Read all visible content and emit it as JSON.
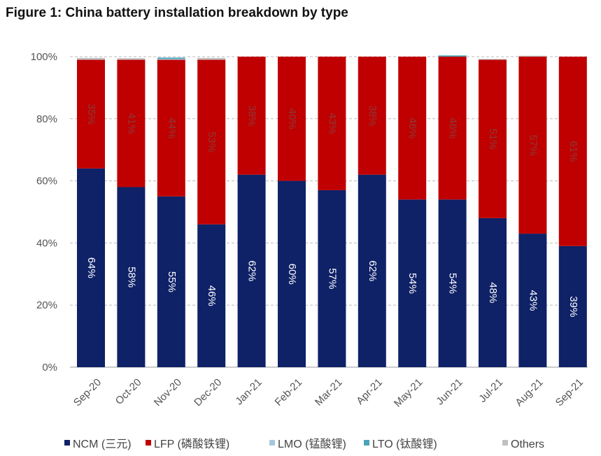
{
  "chart_data": {
    "type": "stacked-bar",
    "title": "Figure 1: China battery installation breakdown by type",
    "categories": [
      "Sep-20",
      "Oct-20",
      "Nov-20",
      "Dec-20",
      "Jan-21",
      "Feb-21",
      "Mar-21",
      "Apr-21",
      "May-21",
      "Jun-21",
      "Jul-21",
      "Aug-21",
      "Sep-21"
    ],
    "ylim": [
      0,
      100
    ],
    "yticks": [
      "0%",
      "20%",
      "40%",
      "60%",
      "80%",
      "100%"
    ],
    "grid": "horizontal dashed",
    "legend_position": "bottom",
    "series": [
      {
        "name": "NCM (三元)",
        "color": "#0f2167",
        "values": [
          64,
          58,
          55,
          46,
          62,
          60,
          57,
          62,
          54,
          54,
          48,
          43,
          39
        ],
        "labels": [
          "64%",
          "58%",
          "55%",
          "46%",
          "62%",
          "60%",
          "57%",
          "62%",
          "54%",
          "54%",
          "48%",
          "43%",
          "39%"
        ]
      },
      {
        "name": "LFP (磷酸铁锂)",
        "color": "#c00000",
        "values": [
          35,
          41,
          44,
          53,
          38,
          40,
          43,
          38,
          46,
          46,
          51,
          57,
          61
        ],
        "labels": [
          "35%",
          "41%",
          "44%",
          "53%",
          "38%",
          "40%",
          "43%",
          "38%",
          "46%",
          "46%",
          "51%",
          "57%",
          "61%"
        ]
      },
      {
        "name": "LMO (锰酸锂)",
        "color": "#a6c8dc",
        "values": [
          0,
          0,
          0.3,
          0,
          0,
          0,
          0,
          0,
          0,
          0,
          0,
          0,
          0
        ]
      },
      {
        "name": "LTO (钛酸锂)",
        "color": "#4aa3b8",
        "values": [
          0,
          0,
          0.4,
          0,
          0,
          0,
          0,
          0,
          0,
          0.4,
          0,
          0,
          0
        ]
      },
      {
        "name": "Others",
        "color": "#c0c0c0",
        "values": [
          0.6,
          0.5,
          0,
          0.6,
          0,
          0,
          0,
          0,
          0,
          0,
          0.3,
          0.3,
          0
        ]
      }
    ]
  }
}
